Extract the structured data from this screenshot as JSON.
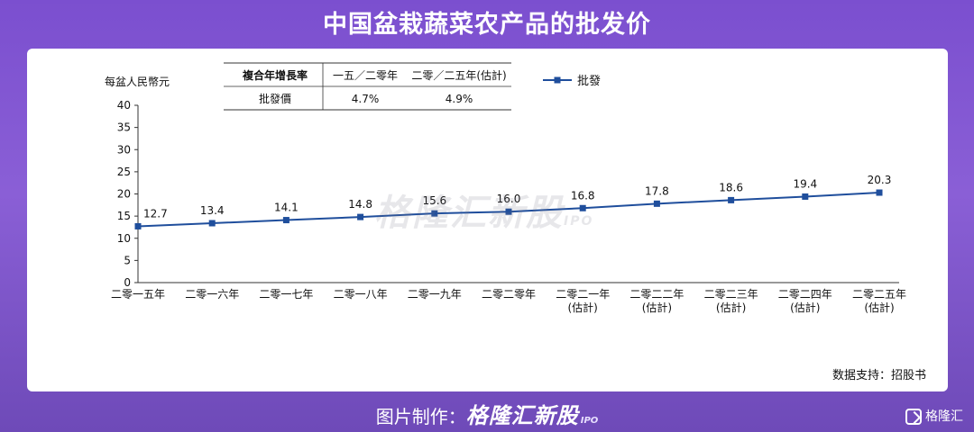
{
  "banner": {
    "title": "中国盆栽蔬菜农产品的批发价"
  },
  "footer": {
    "label": "图片制作：",
    "brand": "格隆汇新股",
    "brand_sub": "IPO"
  },
  "corner_logo": {
    "text": "格隆汇"
  },
  "watermark": {
    "text": "格隆汇新股",
    "sub": "IPO"
  },
  "source": "数据支持：招股书",
  "cagr_table": {
    "header": [
      "複合年增長率",
      "一五／二零年",
      "二零／二五年(估計)"
    ],
    "rows": [
      [
        "批發價",
        "4.7%",
        "4.9%"
      ]
    ]
  },
  "chart_data": {
    "type": "line",
    "ylabel": "每盆人民幣元",
    "ylim": [
      0,
      40
    ],
    "yticks": [
      0,
      5,
      10,
      15,
      20,
      25,
      30,
      35,
      40
    ],
    "grid": false,
    "legend_position": "top-right",
    "categories": [
      [
        "二零一五年"
      ],
      [
        "二零一六年"
      ],
      [
        "二零一七年"
      ],
      [
        "二零一八年"
      ],
      [
        "二零一九年"
      ],
      [
        "二零二零年"
      ],
      [
        "二零二一年",
        "(估計)"
      ],
      [
        "二零二二年",
        "(估計)"
      ],
      [
        "二零二三年",
        "(估計)"
      ],
      [
        "二零二四年",
        "(估計)"
      ],
      [
        "二零二五年",
        "(估計)"
      ]
    ],
    "series": [
      {
        "name": "批發",
        "color": "#1f4e9c",
        "values": [
          12.7,
          13.4,
          14.1,
          14.8,
          15.6,
          16.0,
          16.8,
          17.8,
          18.6,
          19.4,
          20.3
        ],
        "labels": [
          "12.7",
          "13.4",
          "14.1",
          "14.8",
          "15.6",
          "16.0",
          "16.8",
          "17.8",
          "18.6",
          "19.4",
          "20.3"
        ]
      }
    ]
  }
}
